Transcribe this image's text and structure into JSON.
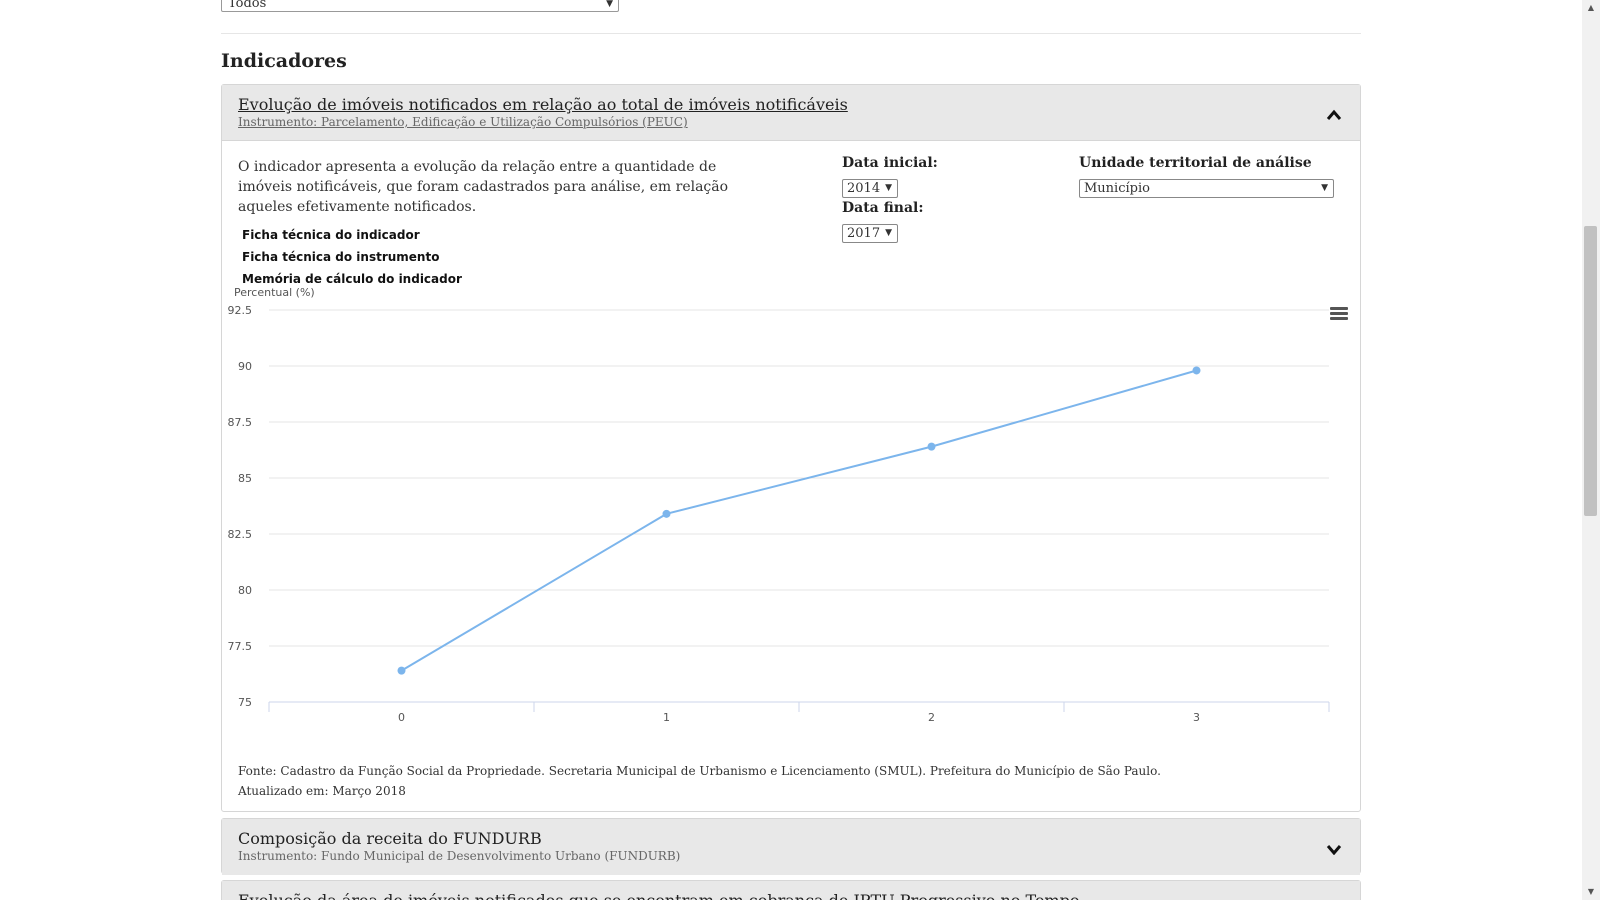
{
  "top_filter": {
    "value": "Todos"
  },
  "section_title": "Indicadores",
  "indicator_1": {
    "title": "Evolução de imóveis notificados em relação ao total de imóveis notificáveis",
    "subtitle": "Instrumento: Parcelamento, Edificação e Utilização Compulsórios (PEUC)",
    "expanded": true,
    "description": "O indicador apresenta a evolução da relação entre a quantidade de imóveis notificáveis, que foram cadastrados para análise, em relação aqueles efetivamente notificados.",
    "links": [
      "Ficha técnica do indicador",
      "Ficha técnica do instrumento",
      "Memória de cálculo do indicador"
    ],
    "date_start": {
      "label": "Data inicial:",
      "value": "2014"
    },
    "date_end": {
      "label": "Data final:",
      "value": "2017"
    },
    "territorial_unit": {
      "label": "Unidade territorial de análise",
      "value": "Município"
    },
    "source": "Fonte: Cadastro da Função Social da Propriedade. Secretaria Municipal de Urbanismo e Licenciamento (SMUL). Prefeitura do Município de São Paulo.",
    "updated": "Atualizado em: Março 2018"
  },
  "chart_data": {
    "type": "line",
    "title": "",
    "ylabel": "Percentual (%)",
    "xlabel": "",
    "categories": [
      "0",
      "1",
      "2",
      "3"
    ],
    "series": [
      {
        "values": [
          76.4,
          83.4,
          86.4,
          89.8
        ]
      }
    ],
    "ylim": [
      75,
      92.5
    ],
    "yticks": [
      75,
      77.5,
      80,
      82.5,
      85,
      87.5,
      90,
      92.5
    ],
    "ytick_labels": [
      "75",
      "77.5",
      "80",
      "82.5",
      "85",
      "87.5",
      "90",
      "92.5"
    ],
    "grid": true,
    "line_color": "#7cb5ec"
  },
  "indicator_2": {
    "title": "Composição da receita do FUNDURB",
    "subtitle": "Instrumento: Fundo Municipal de Desenvolvimento Urbano (FUNDURB)",
    "expanded": false
  },
  "indicator_3": {
    "title": "Evolução da área de imóveis notificados que se encontram em cobrança de IPTU Progressivo no Tempo"
  },
  "icons": {
    "expand": "chevron-up-icon",
    "collapse": "chevron-down-icon",
    "chart_menu": "hamburger-menu-icon"
  }
}
